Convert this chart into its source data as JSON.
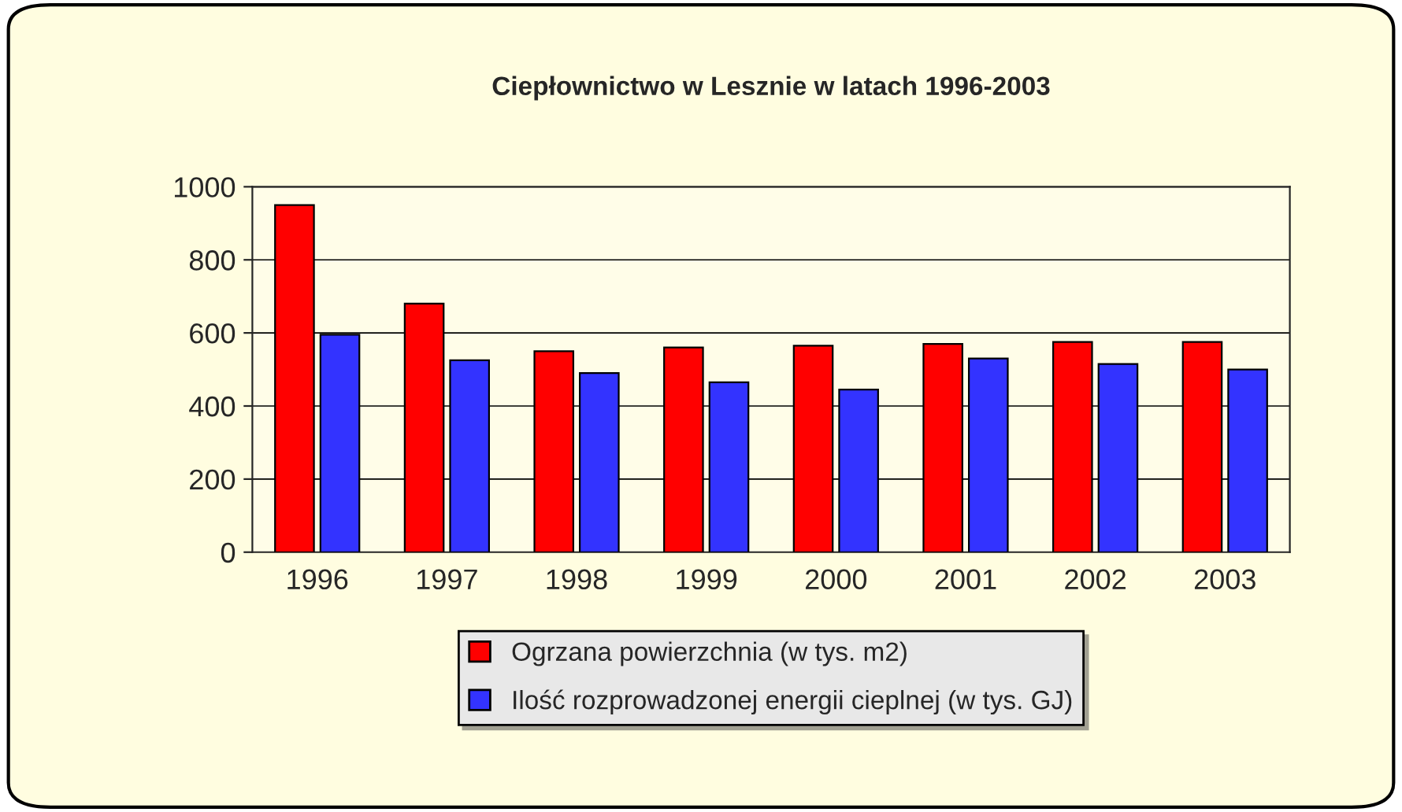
{
  "chart_data": {
    "type": "bar",
    "title": "Ciepłownictwo w Lesznie w latach 1996-2003",
    "categories": [
      "1996",
      "1997",
      "1998",
      "1999",
      "2000",
      "2001",
      "2002",
      "2003"
    ],
    "series": [
      {
        "name": "Ogrzana powierzchnia (w tys. m2)",
        "color": "#ff0000",
        "values": [
          950,
          680,
          550,
          560,
          565,
          570,
          575,
          575
        ]
      },
      {
        "name": "Ilość rozprowadzonej energii cieplnej (w tys. GJ)",
        "color": "#3333ff",
        "values": [
          595,
          525,
          490,
          465,
          445,
          530,
          515,
          500
        ]
      }
    ],
    "ylim": [
      0,
      1000
    ],
    "yticks": [
      0,
      200,
      400,
      600,
      800,
      1000
    ],
    "grid": "y",
    "legend": "bottom"
  }
}
